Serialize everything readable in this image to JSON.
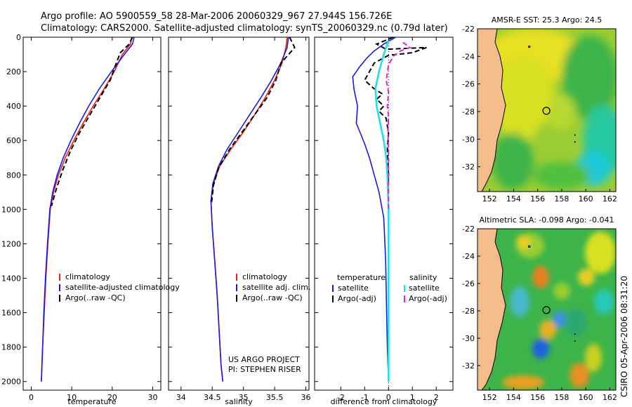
{
  "header": {
    "line1": "Argo profile: AO 5900559_58 28-Mar-2006 20060329_967 27.944S 156.726E",
    "line2": "Climatology: CARS2000. Satellite-adjusted climatology: synTS_20060329.nc (0.79d later)"
  },
  "footer_vertical": "CSIRO 05-Apr-2006 08:31:20",
  "colors": {
    "climatology": "#e8201e",
    "satellite": "#1a1ae0",
    "argo": "#000000",
    "satellite_salinity_diff": "#22e0e8",
    "argo_salinity_diff": "#e020e0",
    "land": "#f5bd8c"
  },
  "chart_data": [
    {
      "type": "line",
      "name": "temperature-profile",
      "xlabel": "temperature",
      "xlim": [
        -2,
        32
      ],
      "ylim": [
        2050,
        0
      ],
      "xticks": [
        0,
        10,
        20,
        30
      ],
      "yticks": [
        0,
        200,
        400,
        600,
        800,
        1000,
        1200,
        1400,
        1600,
        1800,
        2000
      ],
      "legend": [
        "climatology",
        "satellite-adjusted climatology",
        "Argo(..raw -QC)"
      ],
      "series": [
        {
          "name": "climatology",
          "style": "solid",
          "color": "#e8201e",
          "points": [
            [
              24.8,
              0
            ],
            [
              24.5,
              40
            ],
            [
              22.5,
              100
            ],
            [
              20.5,
              200
            ],
            [
              18.0,
              300
            ],
            [
              15.3,
              400
            ],
            [
              12.8,
              500
            ],
            [
              10.5,
              600
            ],
            [
              8.4,
              700
            ],
            [
              6.7,
              800
            ],
            [
              5.5,
              900
            ],
            [
              4.7,
              1000
            ],
            [
              4.1,
              1200
            ],
            [
              3.6,
              1400
            ],
            [
              3.2,
              1600
            ],
            [
              2.8,
              1800
            ],
            [
              2.5,
              2000
            ]
          ]
        },
        {
          "name": "satellite",
          "style": "solid",
          "color": "#1a1ae0",
          "points": [
            [
              25.4,
              0
            ],
            [
              25.0,
              40
            ],
            [
              23.0,
              100
            ],
            [
              19.8,
              200
            ],
            [
              16.8,
              300
            ],
            [
              14.2,
              400
            ],
            [
              11.9,
              500
            ],
            [
              9.8,
              600
            ],
            [
              7.9,
              700
            ],
            [
              6.4,
              800
            ],
            [
              5.3,
              900
            ],
            [
              4.6,
              1000
            ],
            [
              4.0,
              1200
            ],
            [
              3.5,
              1400
            ],
            [
              3.1,
              1600
            ],
            [
              2.8,
              1800
            ],
            [
              2.5,
              2000
            ]
          ]
        },
        {
          "name": "argo",
          "style": "dashed",
          "color": "#000000",
          "points": [
            [
              25.0,
              0
            ],
            [
              24.2,
              40
            ],
            [
              22.0,
              90
            ],
            [
              21.0,
              150
            ],
            [
              19.5,
              250
            ],
            [
              17.0,
              350
            ],
            [
              14.5,
              450
            ],
            [
              11.8,
              560
            ],
            [
              9.7,
              660
            ],
            [
              7.8,
              770
            ],
            [
              6.2,
              880
            ],
            [
              5.0,
              980
            ]
          ]
        }
      ]
    },
    {
      "type": "line",
      "name": "salinity-profile",
      "xlabel": "salinity",
      "xlim": [
        33.8,
        36.05
      ],
      "ylim": [
        2050,
        0
      ],
      "xticks": [
        34,
        34.5,
        35,
        35.5,
        36
      ],
      "legend": [
        "climatology",
        "satellite adj. clim.",
        "Argo(..raw -QC)"
      ],
      "annotations": [
        "US ARGO PROJECT",
        "PI: STEPHEN RISER"
      ],
      "series": [
        {
          "name": "climatology",
          "style": "solid",
          "color": "#e8201e",
          "points": [
            [
              35.7,
              0
            ],
            [
              35.68,
              60
            ],
            [
              35.62,
              150
            ],
            [
              35.5,
              250
            ],
            [
              35.35,
              350
            ],
            [
              35.18,
              450
            ],
            [
              35.0,
              550
            ],
            [
              34.8,
              650
            ],
            [
              34.62,
              750
            ],
            [
              34.52,
              850
            ],
            [
              34.48,
              950
            ],
            [
              34.5,
              1100
            ],
            [
              34.54,
              1300
            ],
            [
              34.58,
              1500
            ],
            [
              34.61,
              1700
            ],
            [
              34.64,
              1900
            ],
            [
              34.67,
              2000
            ]
          ]
        },
        {
          "name": "satellite",
          "style": "solid",
          "color": "#1a1ae0",
          "points": [
            [
              35.72,
              0
            ],
            [
              35.7,
              60
            ],
            [
              35.6,
              150
            ],
            [
              35.45,
              250
            ],
            [
              35.28,
              350
            ],
            [
              35.1,
              450
            ],
            [
              34.92,
              550
            ],
            [
              34.74,
              650
            ],
            [
              34.6,
              750
            ],
            [
              34.51,
              850
            ],
            [
              34.48,
              950
            ],
            [
              34.5,
              1100
            ],
            [
              34.54,
              1300
            ],
            [
              34.58,
              1500
            ],
            [
              34.61,
              1700
            ],
            [
              34.64,
              1900
            ],
            [
              34.67,
              2000
            ]
          ]
        },
        {
          "name": "argo",
          "style": "dashed",
          "color": "#000000",
          "points": [
            [
              35.74,
              0
            ],
            [
              35.82,
              60
            ],
            [
              35.7,
              110
            ],
            [
              35.6,
              150
            ],
            [
              35.52,
              250
            ],
            [
              35.38,
              350
            ],
            [
              35.18,
              450
            ],
            [
              34.98,
              550
            ],
            [
              34.78,
              650
            ],
            [
              34.6,
              760
            ],
            [
              34.52,
              860
            ],
            [
              34.49,
              960
            ]
          ]
        }
      ]
    },
    {
      "type": "line",
      "name": "difference-profile",
      "xlabel": "difference from climatology",
      "xlim": [
        -3.1,
        2.7
      ],
      "ylim": [
        2050,
        0
      ],
      "xticks": [
        -2,
        -1,
        0,
        1,
        2
      ],
      "legend_left": {
        "title": "temperature",
        "items": [
          "satellite",
          "Argo(-adj)"
        ]
      },
      "legend_right": {
        "title": "salinity",
        "items": [
          "satellite",
          "Argo(-adj)"
        ]
      },
      "series": [
        {
          "name": "temperature satellite",
          "style": "solid",
          "color": "#1a1ae0",
          "points": [
            [
              0.3,
              0
            ],
            [
              -0.2,
              40
            ],
            [
              -0.6,
              80
            ],
            [
              -0.9,
              120
            ],
            [
              -1.2,
              170
            ],
            [
              -1.5,
              230
            ],
            [
              -1.45,
              300
            ],
            [
              -1.3,
              400
            ],
            [
              -1.35,
              500
            ],
            [
              -1.2,
              550
            ],
            [
              -1.0,
              620
            ],
            [
              -0.8,
              700
            ],
            [
              -0.6,
              800
            ],
            [
              -0.4,
              900
            ],
            [
              -0.2,
              1050
            ],
            [
              -0.12,
              1300
            ],
            [
              -0.08,
              1600
            ],
            [
              -0.05,
              1800
            ],
            [
              0.0,
              2000
            ]
          ]
        },
        {
          "name": "temperature argo",
          "style": "dashed",
          "color": "#000000",
          "points": [
            [
              0.2,
              0
            ],
            [
              -0.5,
              40
            ],
            [
              -0.1,
              70
            ],
            [
              1.6,
              60
            ],
            [
              1.0,
              90
            ],
            [
              0.0,
              105
            ],
            [
              -0.6,
              150
            ],
            [
              -1.0,
              250
            ],
            [
              -0.6,
              300
            ],
            [
              -0.25,
              330
            ],
            [
              -0.5,
              360
            ],
            [
              -0.2,
              400
            ],
            [
              -0.4,
              430
            ],
            [
              -0.1,
              470
            ],
            [
              0.0,
              560
            ],
            [
              -0.05,
              650
            ],
            [
              0.0,
              800
            ],
            [
              -0.02,
              900
            ],
            [
              0.0,
              1000
            ]
          ]
        },
        {
          "name": "salinity satellite",
          "style": "solid",
          "color": "#22e0e8",
          "points": [
            [
              0.0,
              20
            ],
            [
              -0.1,
              60
            ],
            [
              -0.2,
              100
            ],
            [
              -0.4,
              200
            ],
            [
              -0.55,
              300
            ],
            [
              -0.5,
              400
            ],
            [
              -0.35,
              500
            ],
            [
              -0.2,
              600
            ],
            [
              -0.1,
              700
            ],
            [
              -0.05,
              800
            ],
            [
              0.0,
              1000
            ],
            [
              0.0,
              1500
            ],
            [
              0.0,
              2000
            ]
          ]
        },
        {
          "name": "salinity argo",
          "style": "dashed",
          "color": "#e020e0",
          "points": [
            [
              0.6,
              30
            ],
            [
              0.9,
              60
            ],
            [
              0.5,
              80
            ],
            [
              0.2,
              110
            ],
            [
              0.0,
              160
            ],
            [
              -0.1,
              250
            ],
            [
              0.0,
              320
            ],
            [
              -0.05,
              400
            ],
            [
              0.0,
              460
            ],
            [
              -0.03,
              550
            ],
            [
              0.0,
              650
            ],
            [
              0.0,
              800
            ],
            [
              0.0,
              1000
            ]
          ]
        }
      ]
    },
    {
      "type": "heatmap",
      "name": "amsre-sst-map",
      "title": "AMSR-E SST: 25.3 Argo: 24.5",
      "xlim": [
        151,
        162.5
      ],
      "ylim": [
        -33.8,
        -22
      ],
      "xticks": [
        152,
        154,
        156,
        158,
        160,
        162
      ],
      "yticks": [
        -22,
        -24,
        -26,
        -28,
        -30,
        -32
      ],
      "marker": {
        "lon": 156.726,
        "lat": -27.944
      }
    },
    {
      "type": "heatmap",
      "name": "altimetric-sla-map",
      "title": "Altimetric SLA: -0.098 Argo: -0.041",
      "xlim": [
        151,
        162.5
      ],
      "ylim": [
        -33.8,
        -22
      ],
      "xticks": [
        152,
        154,
        156,
        158,
        160,
        162
      ],
      "yticks": [
        -22,
        -24,
        -26,
        -28,
        -30,
        -32
      ],
      "marker": {
        "lon": 156.726,
        "lat": -27.944
      }
    }
  ]
}
